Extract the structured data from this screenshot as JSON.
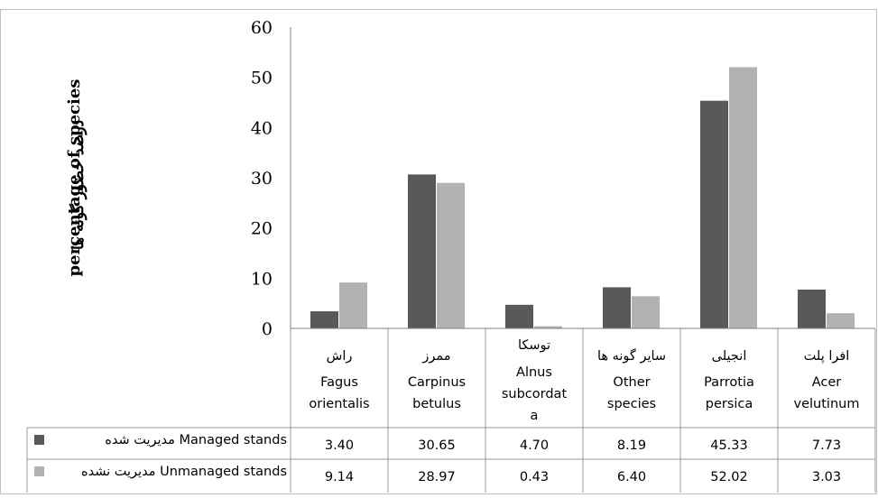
{
  "chart_data": {
    "type": "bar",
    "ylabel_fa": "درصد حضور گونه ها",
    "ylabel_en": "percentage of species",
    "ylim": [
      0,
      60
    ],
    "yticks": [
      "0",
      "10",
      "20",
      "30",
      "40",
      "50",
      "60"
    ],
    "grid": false,
    "categories": [
      {
        "fa": "راش",
        "en": [
          "Fagus",
          "orientalis"
        ]
      },
      {
        "fa": "ممرز",
        "en": [
          "Carpinus",
          "betulus"
        ]
      },
      {
        "fa": "توسکا",
        "en": [
          "Alnus",
          "subcordat",
          "a"
        ]
      },
      {
        "fa": "سایر گونه ها",
        "en": [
          "Other",
          "species"
        ]
      },
      {
        "fa": "انجیلی",
        "en": [
          "Parrotia",
          "persica"
        ]
      },
      {
        "fa": "افرا پلت",
        "en": [
          "Acer",
          "velutinum"
        ]
      }
    ],
    "series": [
      {
        "name_en": "Managed stands",
        "name_fa": "مدیریت شده",
        "color": "#595959",
        "values": [
          3.4,
          30.65,
          4.7,
          8.19,
          45.33,
          7.73
        ],
        "labels": [
          "3.40",
          "30.65",
          "4.70",
          "8.19",
          "45.33",
          "7.73"
        ]
      },
      {
        "name_en": "Unmanaged stands",
        "name_fa": "مدیریت نشده",
        "color": "#b2b2b2",
        "values": [
          9.14,
          28.97,
          0.43,
          6.4,
          52.02,
          3.03
        ],
        "labels": [
          "9.14",
          "28.97",
          "0.43",
          "6.40",
          "52.02",
          "3.03"
        ]
      }
    ]
  }
}
